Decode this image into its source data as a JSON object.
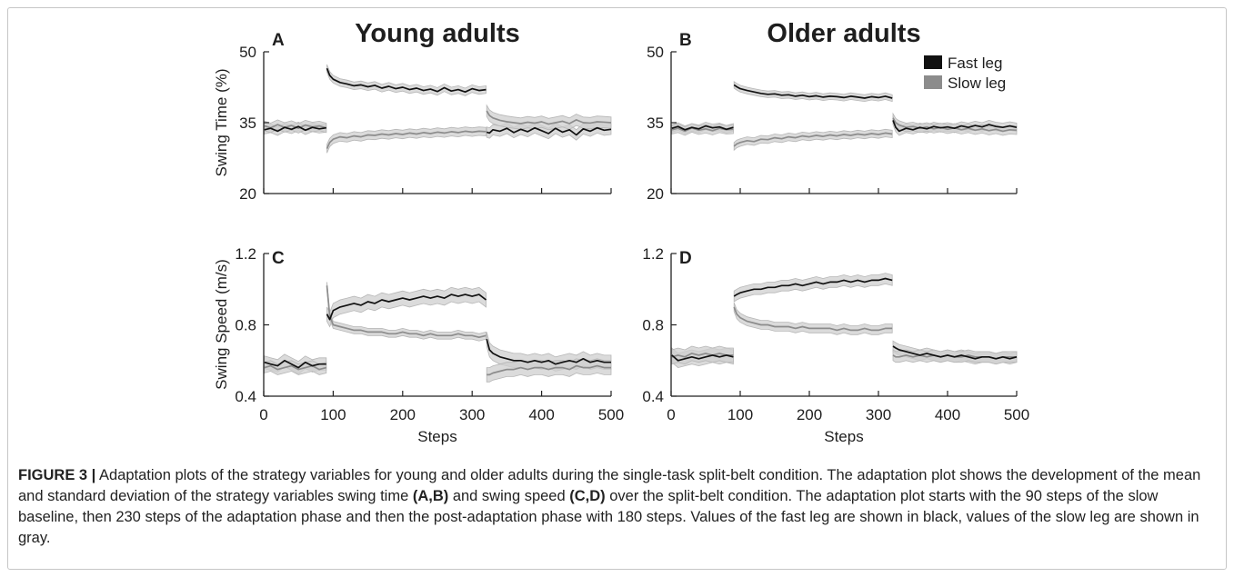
{
  "caption": {
    "label": "FIGURE 3 |",
    "text_1": " Adaptation plots of the strategy variables for young and older adults during the single-task split-belt condition. The adaptation plot shows the development of the mean and standard deviation of the strategy variables swing time ",
    "ref_ab": "(A,B)",
    "text_2": " and swing speed ",
    "ref_cd": "(C,D)",
    "text_3": " over the split-belt condition. The adaptation plot starts with the 90 steps of the slow baseline, then 230 steps of the adaptation phase and then the post-adaptation phase with 180 steps. Values of the fast leg are shown in black, values of the slow leg are shown in gray."
  },
  "chart_data": [
    {
      "panel": "A",
      "type": "line",
      "title": "Young adults",
      "ylabel": "Swing Time (%)",
      "xlim": [
        0,
        500
      ],
      "ylim": [
        20,
        50
      ],
      "xticks": [
        0,
        100,
        200,
        300,
        400,
        500
      ],
      "yticks": [
        20,
        35,
        50
      ],
      "xtick_labels_visible": false,
      "grid": false,
      "band_color": "#cfcfcf",
      "x": [
        [
          1,
          10,
          20,
          30,
          40,
          50,
          60,
          70,
          80,
          90
        ],
        [
          91,
          95,
          100,
          110,
          120,
          130,
          140,
          150,
          160,
          170,
          180,
          190,
          200,
          210,
          220,
          230,
          240,
          250,
          260,
          270,
          280,
          290,
          300,
          310,
          320
        ],
        [
          321,
          325,
          330,
          340,
          350,
          360,
          370,
          380,
          390,
          400,
          410,
          420,
          430,
          440,
          450,
          460,
          470,
          480,
          490,
          500
        ]
      ],
      "series": [
        {
          "color": "#111111",
          "sd": [
            0.9,
            0.8,
            1.1
          ],
          "y": [
            [
              33.5,
              33.8,
              33.2,
              34.0,
              33.6,
              34.2,
              33.4,
              34.0,
              33.7,
              33.9
            ],
            [
              46.5,
              45.0,
              44.2,
              43.5,
              43.2,
              42.8,
              43.0,
              42.6,
              42.9,
              42.3,
              42.7,
              42.2,
              42.5,
              42.0,
              42.3,
              41.8,
              42.1,
              41.6,
              42.4,
              41.7,
              42.0,
              41.5,
              42.2,
              41.8,
              42.0
            ],
            [
              33.0,
              32.8,
              33.5,
              33.2,
              33.8,
              32.9,
              33.6,
              33.1,
              33.9,
              33.3,
              32.7,
              33.8,
              33.0,
              33.5,
              32.4,
              33.7,
              33.2,
              33.9,
              33.4,
              33.6
            ]
          ]
        },
        {
          "color": "#8c8c8c",
          "sd": [
            1.0,
            0.9,
            1.2
          ],
          "y": [
            [
              34.3,
              33.9,
              34.6,
              34.0,
              34.4,
              33.8,
              34.5,
              34.1,
              34.3,
              33.9
            ],
            [
              29.5,
              30.8,
              31.5,
              32.0,
              31.8,
              32.2,
              32.0,
              32.4,
              32.3,
              32.6,
              32.4,
              32.7,
              32.5,
              32.8,
              32.6,
              32.9,
              32.7,
              33.0,
              32.8,
              33.1,
              32.9,
              33.2,
              33.0,
              33.2,
              33.1
            ],
            [
              37.5,
              36.5,
              36.0,
              35.5,
              35.2,
              35.0,
              34.8,
              35.1,
              34.9,
              35.2,
              34.7,
              35.0,
              35.3,
              34.8,
              35.6,
              35.0,
              34.9,
              35.2,
              35.1,
              35.0
            ]
          ]
        }
      ]
    },
    {
      "panel": "B",
      "type": "line",
      "title": "Older adults",
      "xlim": [
        0,
        500
      ],
      "ylim": [
        20,
        50
      ],
      "xticks": [
        0,
        100,
        200,
        300,
        400,
        500
      ],
      "yticks": [
        20,
        35,
        50
      ],
      "xtick_labels_visible": false,
      "grid": false,
      "legend_position": "top-right",
      "band_color": "#cfcfcf",
      "x": [
        [
          1,
          10,
          20,
          30,
          40,
          50,
          60,
          70,
          80,
          90
        ],
        [
          91,
          95,
          100,
          110,
          120,
          130,
          140,
          150,
          160,
          170,
          180,
          190,
          200,
          210,
          220,
          230,
          240,
          250,
          260,
          270,
          280,
          290,
          300,
          310,
          320
        ],
        [
          321,
          325,
          330,
          340,
          350,
          360,
          370,
          380,
          390,
          400,
          410,
          420,
          430,
          440,
          450,
          460,
          470,
          480,
          490,
          500
        ]
      ],
      "series": [
        {
          "name": "Fast leg",
          "color": "#111111",
          "sd": [
            0.8,
            0.7,
            0.9
          ],
          "y": [
            [
              33.8,
              34.2,
              33.5,
              34.0,
              33.7,
              34.3,
              33.9,
              34.1,
              33.6,
              34.0
            ],
            [
              43.0,
              42.6,
              42.2,
              41.8,
              41.5,
              41.2,
              41.0,
              41.1,
              40.8,
              40.9,
              40.6,
              40.8,
              40.5,
              40.7,
              40.4,
              40.6,
              40.5,
              40.3,
              40.6,
              40.4,
              40.2,
              40.5,
              40.3,
              40.6,
              40.2
            ],
            [
              35.5,
              34.0,
              33.2,
              33.8,
              33.5,
              34.0,
              33.7,
              34.2,
              33.9,
              34.1,
              33.8,
              34.3,
              34.0,
              34.4,
              34.1,
              34.6,
              34.2,
              34.0,
              34.3,
              34.0
            ]
          ]
        },
        {
          "name": "Slow leg",
          "color": "#8c8c8c",
          "sd": [
            0.9,
            0.8,
            0.9
          ],
          "y": [
            [
              33.5,
              33.8,
              33.2,
              33.9,
              33.4,
              33.7,
              33.3,
              33.8,
              33.5,
              33.6
            ],
            [
              30.0,
              30.5,
              30.8,
              31.2,
              31.0,
              31.5,
              31.4,
              31.8,
              31.6,
              32.0,
              31.8,
              32.2,
              32.0,
              32.3,
              32.1,
              32.4,
              32.2,
              32.5,
              32.3,
              32.6,
              32.4,
              32.7,
              32.5,
              32.8,
              32.6
            ],
            [
              36.0,
              35.0,
              34.5,
              34.0,
              34.2,
              33.8,
              34.1,
              33.7,
              34.0,
              33.6,
              33.9,
              33.5,
              33.8,
              33.4,
              33.7,
              33.3,
              33.6,
              33.2,
              33.5,
              33.4
            ]
          ]
        }
      ]
    },
    {
      "panel": "C",
      "type": "line",
      "ylabel": "Swing Speed (m/s)",
      "xlabel": "Steps",
      "xlim": [
        0,
        500
      ],
      "ylim": [
        0.4,
        1.2
      ],
      "xticks": [
        0,
        100,
        200,
        300,
        400,
        500
      ],
      "yticks": [
        0.4,
        0.8,
        1.2
      ],
      "xtick_labels_visible": true,
      "grid": false,
      "band_color": "#cfcfcf",
      "x": [
        [
          1,
          10,
          20,
          30,
          40,
          50,
          60,
          70,
          80,
          90
        ],
        [
          91,
          95,
          100,
          110,
          120,
          130,
          140,
          150,
          160,
          170,
          180,
          190,
          200,
          210,
          220,
          230,
          240,
          250,
          260,
          270,
          280,
          290,
          300,
          310,
          320
        ],
        [
          321,
          325,
          330,
          340,
          350,
          360,
          370,
          380,
          390,
          400,
          410,
          420,
          430,
          440,
          450,
          460,
          470,
          480,
          490,
          500
        ]
      ],
      "series": [
        {
          "color": "#111111",
          "sd": [
            0.035,
            0.04,
            0.04
          ],
          "y": [
            [
              0.59,
              0.58,
              0.57,
              0.6,
              0.58,
              0.56,
              0.59,
              0.57,
              0.58,
              0.58
            ],
            [
              0.86,
              0.83,
              0.88,
              0.9,
              0.91,
              0.92,
              0.91,
              0.93,
              0.92,
              0.94,
              0.93,
              0.94,
              0.95,
              0.94,
              0.95,
              0.96,
              0.95,
              0.96,
              0.95,
              0.97,
              0.96,
              0.97,
              0.96,
              0.97,
              0.94
            ],
            [
              0.72,
              0.66,
              0.64,
              0.62,
              0.61,
              0.6,
              0.6,
              0.59,
              0.6,
              0.59,
              0.6,
              0.58,
              0.59,
              0.6,
              0.59,
              0.61,
              0.59,
              0.6,
              0.59,
              0.59
            ]
          ]
        },
        {
          "color": "#8c8c8c",
          "sd": [
            0.03,
            0.02,
            0.04
          ],
          "y": [
            [
              0.56,
              0.57,
              0.55,
              0.56,
              0.57,
              0.55,
              0.56,
              0.57,
              0.55,
              0.56
            ],
            [
              1.02,
              0.85,
              0.8,
              0.79,
              0.78,
              0.77,
              0.77,
              0.76,
              0.76,
              0.76,
              0.75,
              0.75,
              0.76,
              0.75,
              0.75,
              0.74,
              0.75,
              0.74,
              0.74,
              0.74,
              0.75,
              0.74,
              0.74,
              0.73,
              0.74
            ],
            [
              0.52,
              0.52,
              0.53,
              0.54,
              0.55,
              0.55,
              0.56,
              0.55,
              0.56,
              0.56,
              0.55,
              0.56,
              0.56,
              0.55,
              0.57,
              0.56,
              0.56,
              0.57,
              0.56,
              0.56
            ]
          ]
        }
      ]
    },
    {
      "panel": "D",
      "type": "line",
      "xlabel": "Steps",
      "xlim": [
        0,
        500
      ],
      "ylim": [
        0.4,
        1.2
      ],
      "xticks": [
        0,
        100,
        200,
        300,
        400,
        500
      ],
      "yticks": [
        0.4,
        0.8,
        1.2
      ],
      "xtick_labels_visible": true,
      "grid": false,
      "band_color": "#cfcfcf",
      "x": [
        [
          1,
          10,
          20,
          30,
          40,
          50,
          60,
          70,
          80,
          90
        ],
        [
          91,
          95,
          100,
          110,
          120,
          130,
          140,
          150,
          160,
          170,
          180,
          190,
          200,
          210,
          220,
          230,
          240,
          250,
          260,
          270,
          280,
          290,
          300,
          310,
          320
        ],
        [
          321,
          325,
          330,
          340,
          350,
          360,
          370,
          380,
          390,
          400,
          410,
          420,
          430,
          440,
          450,
          460,
          470,
          480,
          490,
          500
        ]
      ],
      "series": [
        {
          "color": "#111111",
          "sd": [
            0.04,
            0.03,
            0.03
          ],
          "y": [
            [
              0.63,
              0.6,
              0.61,
              0.62,
              0.61,
              0.62,
              0.63,
              0.62,
              0.63,
              0.62
            ],
            [
              0.96,
              0.97,
              0.98,
              0.99,
              1.0,
              1.0,
              1.01,
              1.01,
              1.02,
              1.02,
              1.03,
              1.02,
              1.03,
              1.04,
              1.03,
              1.04,
              1.04,
              1.05,
              1.04,
              1.05,
              1.04,
              1.05,
              1.05,
              1.06,
              1.05
            ],
            [
              0.68,
              0.67,
              0.66,
              0.65,
              0.64,
              0.63,
              0.64,
              0.63,
              0.62,
              0.63,
              0.62,
              0.63,
              0.62,
              0.61,
              0.62,
              0.62,
              0.61,
              0.62,
              0.61,
              0.62
            ]
          ]
        },
        {
          "color": "#8c8c8c",
          "sd": [
            0.04,
            0.025,
            0.03
          ],
          "y": [
            [
              0.62,
              0.63,
              0.62,
              0.64,
              0.63,
              0.64,
              0.63,
              0.64,
              0.63,
              0.63
            ],
            [
              0.9,
              0.86,
              0.84,
              0.82,
              0.81,
              0.8,
              0.8,
              0.79,
              0.79,
              0.79,
              0.78,
              0.79,
              0.78,
              0.78,
              0.78,
              0.78,
              0.77,
              0.78,
              0.77,
              0.77,
              0.78,
              0.77,
              0.77,
              0.78,
              0.78
            ],
            [
              0.63,
              0.62,
              0.62,
              0.63,
              0.62,
              0.63,
              0.62,
              0.63,
              0.62,
              0.63,
              0.62,
              0.62,
              0.63,
              0.62,
              0.62,
              0.62,
              0.61,
              0.62,
              0.62,
              0.62
            ]
          ]
        }
      ]
    }
  ]
}
